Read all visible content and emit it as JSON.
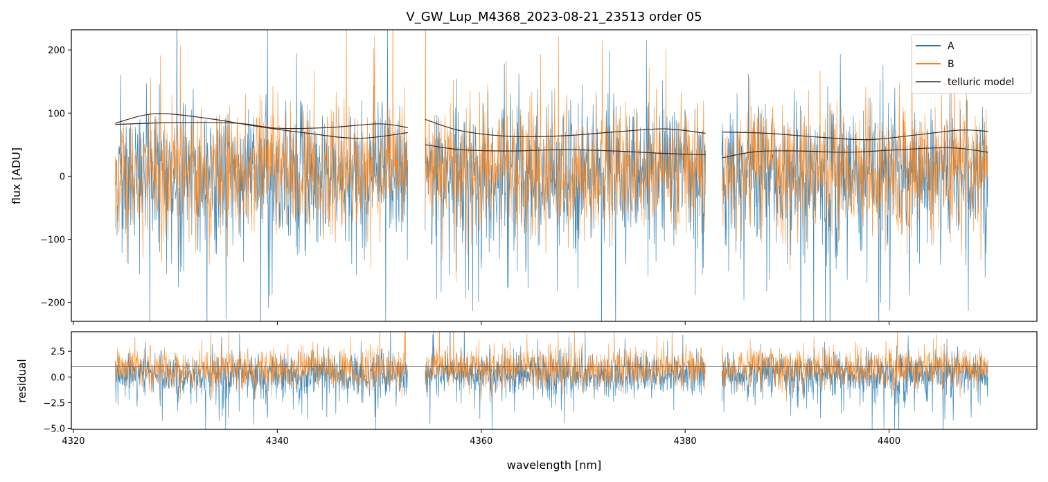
{
  "chart_data": {
    "type": "line",
    "title": "V_GW_Lup_M4368_2023-08-21_23513  order 05",
    "xlabel": "wavelength [nm]",
    "x_ticks": [
      4320,
      4340,
      4360,
      4380,
      4400
    ],
    "xlim": [
      4319.8,
      4414.5
    ],
    "segments": [
      [
        4324.1,
        4352.8
      ],
      [
        4354.5,
        4382.0
      ],
      [
        4383.6,
        4409.7
      ]
    ],
    "top_panel": {
      "ylabel": "flux [ADU]",
      "ylim": [
        -230,
        232
      ],
      "y_ticks": [
        200,
        100,
        0,
        -100,
        -200
      ],
      "series": [
        {
          "name": "A",
          "color": "#1f77b4",
          "center": 5,
          "noise": 48,
          "neg_skew": 60
        },
        {
          "name": "B",
          "color": "#ff7f0e",
          "center": 10,
          "noise": 48,
          "neg_skew": 20
        }
      ],
      "telluric_model": {
        "name": "telluric model",
        "color": "#3a2a1f",
        "curves": [
          [
            {
              "x": [
                4324.1,
                4328.0,
                4333.0,
                4338.0,
                4343.0,
                4348.0,
                4352.8
              ],
              "y": [
                84,
                99,
                92,
                79,
                68,
                60,
                69
              ]
            },
            {
              "x": [
                4324.1,
                4330.0,
                4336.0,
                4340.0,
                4345.0,
                4350.0,
                4352.8
              ],
              "y": [
                82,
                85,
                84,
                76,
                77,
                83,
                77
              ]
            }
          ],
          [
            {
              "x": [
                4354.5,
                4358.0,
                4363.0,
                4368.0,
                4373.0,
                4378.0,
                4382.0
              ],
              "y": [
                90,
                72,
                63,
                64,
                70,
                75,
                68
              ]
            },
            {
              "x": [
                4354.5,
                4358.0,
                4363.0,
                4368.0,
                4373.0,
                4378.0,
                4382.0
              ],
              "y": [
                50,
                42,
                40,
                42,
                40,
                36,
                34
              ]
            }
          ],
          [
            {
              "x": [
                4383.6,
                4388.0,
                4393.0,
                4398.0,
                4403.0,
                4407.0,
                4409.7
              ],
              "y": [
                70,
                68,
                62,
                58,
                66,
                73,
                71
              ]
            },
            {
              "x": [
                4383.6,
                4387.0,
                4391.0,
                4396.0,
                4401.0,
                4406.0,
                4409.7
              ],
              "y": [
                29,
                39,
                40,
                38,
                42,
                45,
                38
              ]
            }
          ]
        ]
      },
      "legend": {
        "entries": [
          "A",
          "B",
          "telluric model"
        ],
        "placement": "top-right"
      }
    },
    "bottom_panel": {
      "ylabel": "residual",
      "ylim": [
        -5.1,
        4.4
      ],
      "y_ticks": [
        2.5,
        0.0,
        -2.5,
        -5.0
      ],
      "y_tick_labels": [
        "2.5",
        "0.0",
        "−2.5",
        "−5.0"
      ],
      "reference_line": 1.0,
      "series": [
        {
          "name": "A",
          "color": "#1f77b4",
          "center": 0.3,
          "noise": 0.95,
          "neg_skew": 1.3
        },
        {
          "name": "B",
          "color": "#ff7f0e",
          "center": 0.8,
          "noise": 0.95,
          "neg_skew": 0.2
        }
      ]
    }
  }
}
